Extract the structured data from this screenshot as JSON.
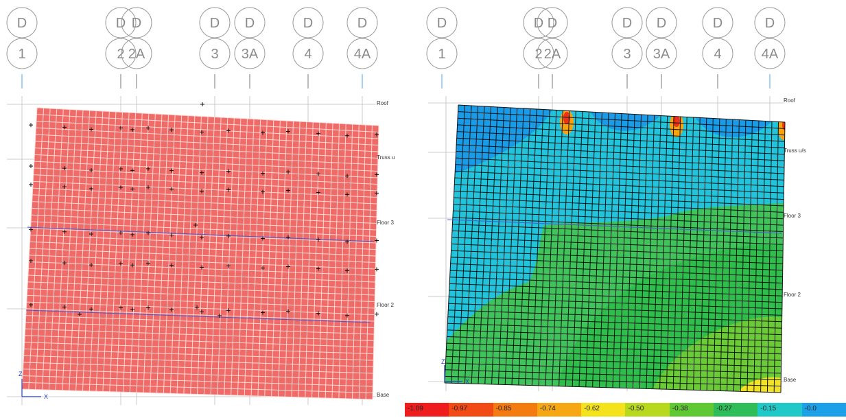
{
  "grid_lines": [
    {
      "tag": "D",
      "name": "1"
    },
    {
      "tag": "D",
      "name": "2"
    },
    {
      "tag": "D",
      "name": "2A"
    },
    {
      "tag": "D",
      "name": "3"
    },
    {
      "tag": "D",
      "name": "3A"
    },
    {
      "tag": "D",
      "name": "4"
    },
    {
      "tag": "D",
      "name": "4A"
    }
  ],
  "left_view": {
    "levels": [
      "Roof",
      "Truss u",
      "Floor 3",
      "Floor 2",
      "Base"
    ],
    "axis_z": "Z",
    "axis_x": "X",
    "mesh_color": "#ee6b67"
  },
  "right_view": {
    "levels": [
      "Roof",
      "Truss u/s",
      "Floor 3",
      "Floor 2",
      "Base"
    ],
    "axis_z": "Z",
    "axis_x": "X"
  },
  "legend": {
    "labels": [
      "-1.09",
      "-0.97",
      "-0.85",
      "-0.74",
      "-0.62",
      "-0.50",
      "-0.38",
      "-0.27",
      "-0.15",
      "-0.0"
    ],
    "colors": [
      "#ee1c1c",
      "#f24a14",
      "#f47b10",
      "#f6a814",
      "#f3e21c",
      "#b7d81c",
      "#5fc832",
      "#2fbd5a",
      "#20c8c8",
      "#1ca0e8"
    ]
  }
}
